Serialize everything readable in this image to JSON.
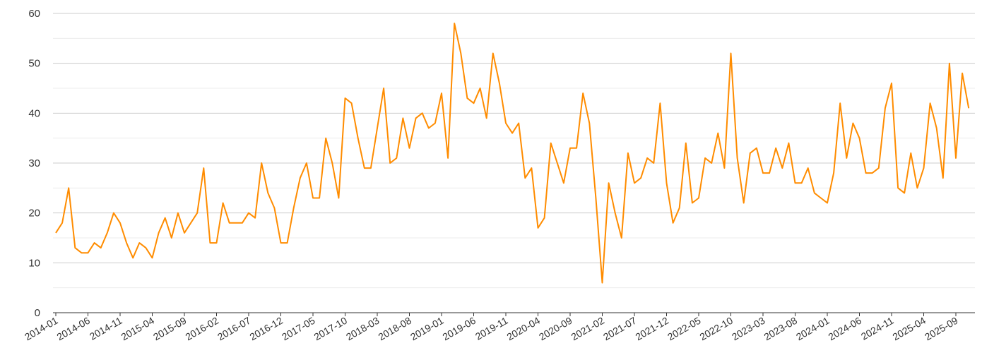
{
  "chart_data": {
    "type": "line",
    "title": "",
    "xlabel": "",
    "ylabel": "",
    "ylim": [
      0,
      60
    ],
    "y_ticks": [
      0,
      10,
      20,
      30,
      40,
      50,
      60
    ],
    "grid": true,
    "legend": "none",
    "x_tick_labels": [
      "2014-01",
      "2014-06",
      "2014-11",
      "2015-04",
      "2015-09",
      "2016-02",
      "2016-07",
      "2016-12",
      "2017-05",
      "2017-10",
      "2018-03",
      "2018-08",
      "2019-01",
      "2019-06",
      "2019-11",
      "2020-04",
      "2020-09",
      "2021-02",
      "2021-07",
      "2021-12",
      "2022-05",
      "2022-10",
      "2023-03",
      "2023-08",
      "2024-01",
      "2024-06",
      "2024-11",
      "2025-04",
      "2025-09"
    ],
    "x_start": "2014-01",
    "series": [
      {
        "color": "#ff8c00",
        "values": [
          16,
          18,
          25,
          13,
          12,
          12,
          14,
          13,
          16,
          20,
          18,
          14,
          11,
          14,
          13,
          11,
          16,
          19,
          15,
          20,
          16,
          18,
          20,
          29,
          14,
          14,
          22,
          18,
          18,
          18,
          20,
          19,
          30,
          24,
          21,
          14,
          14,
          21,
          27,
          30,
          23,
          23,
          35,
          30,
          23,
          43,
          42,
          35,
          29,
          29,
          37,
          45,
          30,
          31,
          39,
          33,
          39,
          40,
          37,
          38,
          44,
          31,
          58,
          52,
          43,
          42,
          45,
          39,
          52,
          46,
          38,
          36,
          38,
          27,
          29,
          17,
          19,
          34,
          30,
          26,
          33,
          33,
          44,
          38,
          23,
          6,
          26,
          20,
          15,
          32,
          26,
          27,
          31,
          30,
          42,
          26,
          18,
          21,
          34,
          22,
          23,
          31,
          30,
          36,
          29,
          52,
          31,
          22,
          32,
          33,
          28,
          28,
          33,
          29,
          34,
          26,
          26,
          29,
          24,
          23,
          22,
          28,
          42,
          31,
          38,
          35,
          28,
          28,
          29,
          41,
          46,
          25,
          24,
          32,
          25,
          29,
          42,
          37,
          27,
          50,
          31,
          48,
          41
        ]
      }
    ]
  }
}
